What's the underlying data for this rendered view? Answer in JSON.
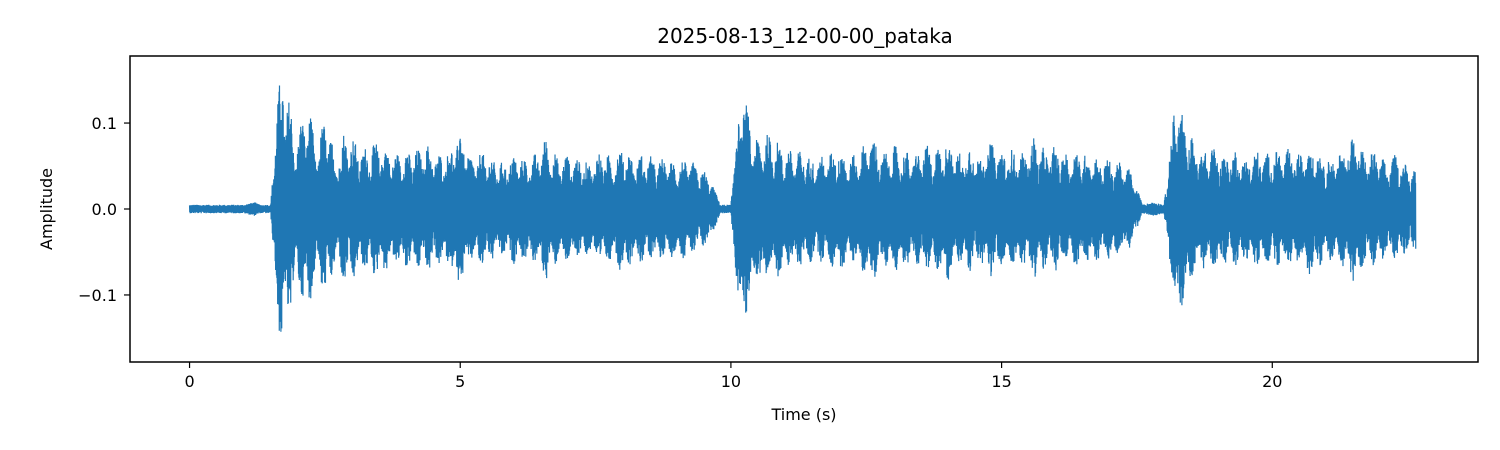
{
  "chart_data": {
    "type": "line",
    "title": "2025-08-13_12-00-00_pataka",
    "xlabel": "Time (s)",
    "ylabel": "Amplitude",
    "xlim": [
      -1.1,
      23.8
    ],
    "ylim": [
      -0.178,
      0.178
    ],
    "x_ticks": [
      0,
      5,
      10,
      15,
      20
    ],
    "x_tick_labels": [
      "0",
      "5",
      "10",
      "15",
      "20"
    ],
    "y_ticks": [
      -0.1,
      0.0,
      0.1
    ],
    "y_tick_labels": [
      "−0.1",
      "0.0",
      "0.1"
    ],
    "grid": false,
    "legend": "none",
    "duration_s": 22.65,
    "series": [
      {
        "color": "#1f77b4",
        "envelope": {
          "t": [
            0.0,
            0.5,
            1.0,
            1.2,
            1.3,
            1.5,
            1.6,
            1.7,
            1.75,
            1.85,
            1.95,
            2.1,
            2.2,
            2.35,
            2.5,
            2.6,
            2.7,
            2.85,
            3.0,
            3.2,
            3.4,
            3.6,
            3.8,
            4.0,
            4.2,
            4.4,
            4.6,
            4.8,
            5.0,
            5.2,
            5.4,
            5.6,
            5.8,
            6.0,
            6.2,
            6.4,
            6.6,
            6.8,
            7.0,
            7.2,
            7.4,
            7.6,
            7.8,
            8.0,
            8.2,
            8.4,
            8.6,
            8.8,
            9.0,
            9.2,
            9.4,
            9.6,
            9.8,
            10.0,
            10.1,
            10.2,
            10.3,
            10.45,
            10.6,
            10.8,
            11.0,
            11.2,
            11.4,
            11.6,
            11.8,
            12.0,
            12.2,
            12.4,
            12.6,
            12.8,
            13.0,
            13.2,
            13.4,
            13.6,
            13.8,
            14.0,
            14.2,
            14.4,
            14.6,
            14.8,
            15.0,
            15.2,
            15.4,
            15.6,
            15.8,
            16.0,
            16.2,
            16.4,
            16.6,
            16.8,
            17.0,
            17.2,
            17.4,
            17.6,
            17.8,
            18.0,
            18.1,
            18.2,
            18.3,
            18.4,
            18.55,
            18.7,
            18.9,
            19.1,
            19.3,
            19.5,
            19.7,
            19.9,
            20.1,
            20.3,
            20.5,
            20.7,
            20.9,
            21.1,
            21.3,
            21.5,
            21.7,
            21.9,
            22.1,
            22.3,
            22.5,
            22.65
          ],
          "amp": [
            0.005,
            0.005,
            0.005,
            0.008,
            0.005,
            0.005,
            0.12,
            0.163,
            0.15,
            0.13,
            0.08,
            0.11,
            0.12,
            0.07,
            0.11,
            0.09,
            0.06,
            0.09,
            0.085,
            0.07,
            0.08,
            0.075,
            0.065,
            0.07,
            0.07,
            0.075,
            0.065,
            0.07,
            0.095,
            0.06,
            0.07,
            0.06,
            0.055,
            0.065,
            0.06,
            0.065,
            0.085,
            0.06,
            0.065,
            0.06,
            0.055,
            0.07,
            0.06,
            0.075,
            0.06,
            0.065,
            0.06,
            0.06,
            0.055,
            0.06,
            0.05,
            0.04,
            0.005,
            0.005,
            0.09,
            0.143,
            0.12,
            0.08,
            0.09,
            0.085,
            0.07,
            0.07,
            0.065,
            0.06,
            0.065,
            0.075,
            0.06,
            0.07,
            0.09,
            0.065,
            0.075,
            0.07,
            0.065,
            0.075,
            0.07,
            0.085,
            0.065,
            0.075,
            0.065,
            0.08,
            0.07,
            0.07,
            0.065,
            0.085,
            0.07,
            0.075,
            0.065,
            0.07,
            0.065,
            0.06,
            0.06,
            0.055,
            0.045,
            0.005,
            0.008,
            0.005,
            0.06,
            0.137,
            0.12,
            0.1,
            0.08,
            0.07,
            0.075,
            0.065,
            0.07,
            0.06,
            0.07,
            0.065,
            0.07,
            0.07,
            0.065,
            0.08,
            0.065,
            0.06,
            0.07,
            0.09,
            0.065,
            0.07,
            0.055,
            0.065,
            0.05,
            0.05
          ]
        }
      }
    ]
  }
}
